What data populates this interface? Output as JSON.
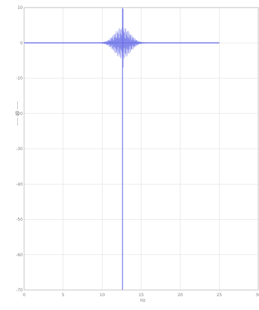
{
  "chart_data": {
    "type": "line",
    "title": "",
    "xlabel": "Hz",
    "ylabel": "—— dB ——",
    "xlim": [
      0,
      30
    ],
    "ylim": [
      -70,
      10
    ],
    "x_ticks": [
      0,
      5,
      10,
      15,
      20,
      25,
      30
    ],
    "y_ticks": [
      -70,
      -60,
      -50,
      -40,
      -30,
      -20,
      -10,
      0,
      10
    ],
    "x_tick_labels": [
      "0",
      "5",
      "10",
      "15",
      "20",
      "25",
      "30"
    ],
    "y_tick_labels": [
      "-70",
      "-60",
      "-50",
      "-40",
      "-30",
      "-20",
      "-10",
      "0",
      "10"
    ],
    "grid": true,
    "color": "#6f74e8",
    "series": [
      {
        "values": {
          "baseline_level": 0,
          "baseline_x": [
            0,
            25
          ],
          "spike_center_x": 12.6,
          "spike_max": 10,
          "spike_min": -70,
          "cluster_width": 3.2,
          "cluster_amplitude": 4.5
        }
      }
    ]
  }
}
